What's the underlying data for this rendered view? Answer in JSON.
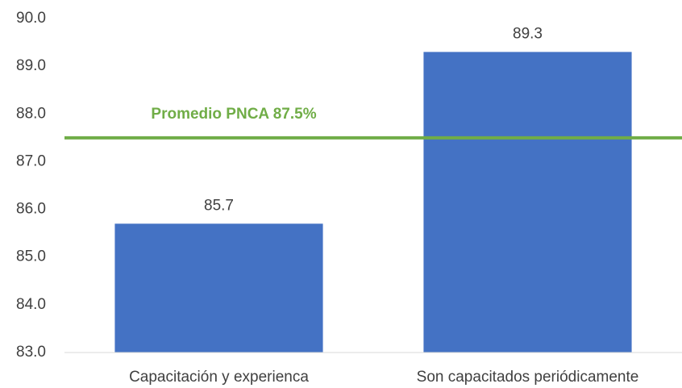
{
  "chart_data": {
    "type": "bar",
    "categories": [
      "Capacitación y experienca",
      "Son capacitados periódicamente"
    ],
    "values": [
      85.7,
      89.3
    ],
    "color": "#4472c4",
    "ylim": [
      83,
      90
    ],
    "yticks": [
      {
        "value": 83,
        "label": "83.0"
      },
      {
        "value": 84,
        "label": "84.0"
      },
      {
        "value": 85,
        "label": "85.0"
      },
      {
        "value": 86,
        "label": "86.0"
      },
      {
        "value": 87,
        "label": "87.0"
      },
      {
        "value": 88,
        "label": "88.0"
      },
      {
        "value": 89,
        "label": "89.0"
      },
      {
        "value": 90,
        "label": "90.0"
      }
    ],
    "reference_line": {
      "value": 87.5,
      "label": "Promedio PNCA 87.5%",
      "color": "#70ad47"
    }
  }
}
